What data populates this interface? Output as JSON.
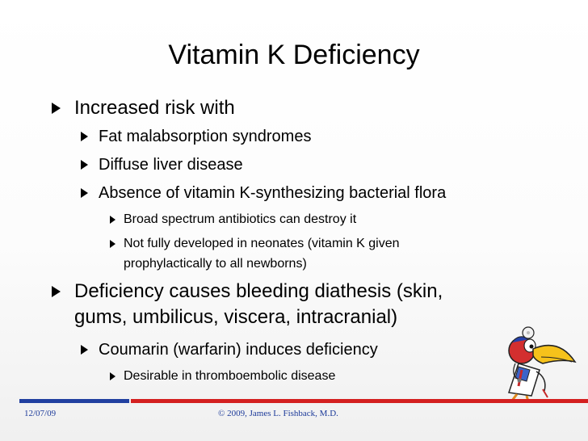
{
  "slide": {
    "title": "Vitamin K Deficiency",
    "bullets": [
      {
        "level": 1,
        "text": "Increased risk with"
      },
      {
        "level": 2,
        "text": "Fat malabsorption syndromes"
      },
      {
        "level": 2,
        "text": "Diffuse liver disease"
      },
      {
        "level": 2,
        "text": "Absence of vitamin K-synthesizing bacterial flora"
      },
      {
        "level": 3,
        "text": "Broad spectrum antibiotics can destroy it"
      },
      {
        "level": 3,
        "lines": [
          "Not fully developed in neonates (vitamin K given",
          "prophylactically to all newborns)"
        ]
      },
      {
        "level": 1,
        "lines": [
          "Deficiency causes bleeding diathesis (skin,",
          "gums, umbilicus, viscera, intracranial)"
        ]
      },
      {
        "level": 2,
        "text": "Coumarin (warfarin) induces deficiency"
      },
      {
        "level": 3,
        "text": "Desirable in thromboembolic disease"
      }
    ]
  },
  "footer": {
    "date": "12/07/09",
    "copyright": "© 2009, James L. Fishback, M.D."
  },
  "mascot": {
    "icon": "cartoon-bird-doctor-icon"
  },
  "colors": {
    "footer_blue": "#2140a0",
    "footer_red": "#d42020",
    "footer_text": "#1d3b9a"
  }
}
